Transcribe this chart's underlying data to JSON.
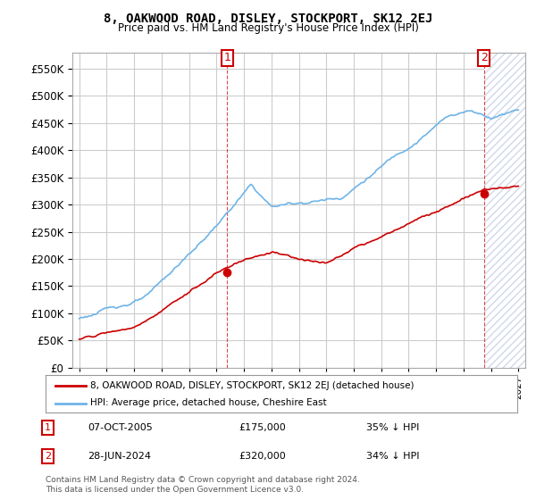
{
  "title": "8, OAKWOOD ROAD, DISLEY, STOCKPORT, SK12 2EJ",
  "subtitle": "Price paid vs. HM Land Registry's House Price Index (HPI)",
  "legend_line1": "8, OAKWOOD ROAD, DISLEY, STOCKPORT, SK12 2EJ (detached house)",
  "legend_line2": "HPI: Average price, detached house, Cheshire East",
  "annotation1_label": "1",
  "annotation1_date": "07-OCT-2005",
  "annotation1_price": "£175,000",
  "annotation1_hpi": "35% ↓ HPI",
  "annotation2_label": "2",
  "annotation2_date": "28-JUN-2024",
  "annotation2_price": "£320,000",
  "annotation2_hpi": "34% ↓ HPI",
  "footnote": "Contains HM Land Registry data © Crown copyright and database right 2024.\nThis data is licensed under the Open Government Licence v3.0.",
  "hpi_color": "#6eb4e8",
  "price_color": "#cc0000",
  "annotation_color": "#cc0000",
  "bg_color": "#ffffff",
  "grid_color": "#cccccc",
  "hatch_color": "#d0d8e8",
  "ylim": [
    0,
    580000
  ],
  "yticks": [
    0,
    50000,
    100000,
    150000,
    200000,
    250000,
    300000,
    350000,
    400000,
    450000,
    500000,
    550000
  ],
  "xlim_start": 1994.5,
  "xlim_end": 2027.5,
  "sale1_x": 2005.77,
  "sale1_y": 175000,
  "sale2_x": 2024.49,
  "sale2_y": 320000
}
